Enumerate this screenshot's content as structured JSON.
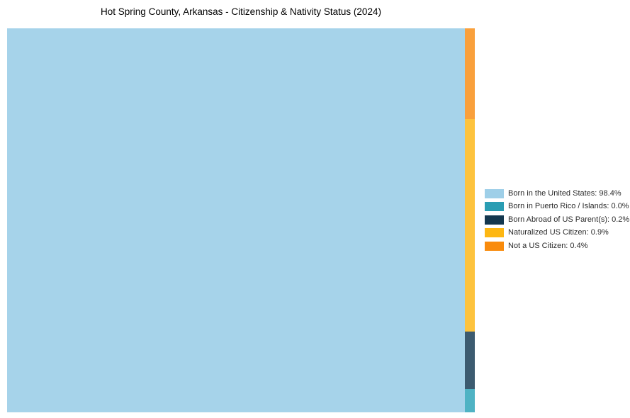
{
  "page": {
    "background_color": "#ffffff"
  },
  "chart_data": {
    "type": "treemap",
    "title": "Hot Spring County, Arkansas - Citizenship & Nativity Status (2024)",
    "legend_position": "right",
    "grid": false,
    "categories": [
      "Born in the United States",
      "Born in Puerto Rico / Islands",
      "Born Abroad of US Parent(s)",
      "Naturalized US Citizen",
      "Not a US Citizen"
    ],
    "values_pct": [
      98.4,
      0.0,
      0.2,
      0.9,
      0.4
    ],
    "rects": [
      {
        "category": "Born in the United States",
        "value_pct": 98.4,
        "color": "#A6D3EA",
        "x_pct": 0,
        "y_pct": 0,
        "w_pct": 97.88,
        "h_pct": 100
      },
      {
        "category": "Not a US Citizen",
        "value_pct": 0.4,
        "color": "#F9A03C",
        "x_pct": 97.88,
        "y_pct": 0,
        "w_pct": 2.12,
        "h_pct": 23.62
      },
      {
        "category": "Naturalized US Citizen",
        "value_pct": 0.9,
        "color": "#FDC33E",
        "x_pct": 97.88,
        "y_pct": 23.62,
        "w_pct": 2.12,
        "h_pct": 55.35
      },
      {
        "category": "Born Abroad of US Parent(s)",
        "value_pct": 0.2,
        "color": "#3C5B70",
        "x_pct": 97.88,
        "y_pct": 78.97,
        "w_pct": 2.12,
        "h_pct": 14.94
      },
      {
        "category": "Born in Puerto Rico / Islands",
        "value_pct": 0.0,
        "color": "#4FB3C4",
        "x_pct": 97.88,
        "y_pct": 93.91,
        "w_pct": 2.12,
        "h_pct": 6.09
      }
    ]
  },
  "legend": {
    "items": [
      {
        "label": "Born in the United States: 98.4%",
        "color": "#9ECFE8"
      },
      {
        "label": "Born in Puerto Rico / Islands: 0.0%",
        "color": "#2A9DB3"
      },
      {
        "label": "Born Abroad of US Parent(s): 0.2%",
        "color": "#14374E"
      },
      {
        "label": "Naturalized US Citizen: 0.9%",
        "color": "#FDB713"
      },
      {
        "label": "Not a US Citizen: 0.4%",
        "color": "#F98B0C"
      }
    ]
  }
}
